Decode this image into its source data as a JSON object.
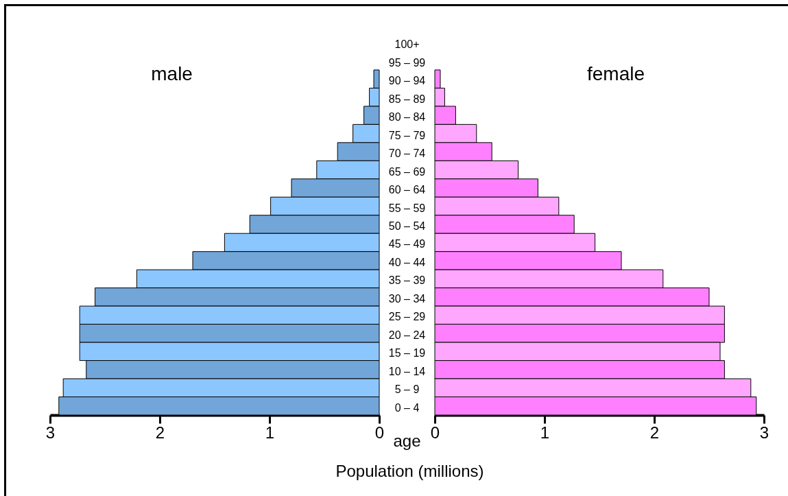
{
  "chart_data": [
    {
      "type": "bar",
      "orientation": "horizontal",
      "ylabel": "age",
      "categories": [
        "100+",
        "95 – 99",
        "90 – 94",
        "85 – 89",
        "80 – 84",
        "75 – 79",
        "70 – 74",
        "65 – 69",
        "60 – 64",
        "55 – 59",
        "50 – 54",
        "45 – 49",
        "40 – 44",
        "35 – 39",
        "30 – 34",
        "25 – 29",
        "20 – 24",
        "15 – 19",
        "10 – 14",
        "5 – 9",
        "0 – 4"
      ],
      "series": [
        {
          "name": "male",
          "colors": [
            "#72a6d9",
            "#8cc6ff",
            "#72a6d9",
            "#8cc6ff",
            "#72a6d9",
            "#8cc6ff",
            "#72a6d9",
            "#8cc6ff",
            "#72a6d9",
            "#8cc6ff",
            "#72a6d9",
            "#8cc6ff",
            "#72a6d9",
            "#8cc6ff",
            "#72a6d9",
            "#8cc6ff",
            "#72a6d9",
            "#8cc6ff",
            "#72a6d9",
            "#8cc6ff",
            "#72a6d9"
          ],
          "values": [
            null,
            null,
            0.05,
            0.09,
            0.14,
            0.24,
            0.38,
            0.57,
            0.8,
            0.99,
            1.18,
            1.41,
            1.7,
            2.21,
            2.59,
            2.73,
            2.73,
            2.73,
            2.67,
            2.88,
            2.92
          ]
        }
      ],
      "xlim": [
        3,
        0
      ],
      "xticks": [
        3,
        2,
        1,
        0
      ],
      "grid": false
    },
    {
      "type": "bar",
      "orientation": "horizontal",
      "xlabel": "Population (millions)",
      "categories": [
        null,
        null,
        null,
        null,
        null,
        null,
        null,
        null,
        null,
        null,
        null,
        null,
        null,
        null,
        null,
        null,
        null,
        null,
        null,
        null,
        null
      ],
      "series": [
        {
          "name": "female",
          "colors": [
            "#ff80ff",
            "#ffa6ff",
            "#ff80ff",
            "#ffa6ff",
            "#ff80ff",
            "#ffa6ff",
            "#ff80ff",
            "#ffa6ff",
            "#ff80ff",
            "#ffa6ff",
            "#ff80ff",
            "#ffa6ff",
            "#ff80ff",
            "#ffa6ff",
            "#ff80ff",
            "#ffa6ff",
            "#ff80ff",
            "#ffa6ff",
            "#ff80ff",
            "#ffa6ff",
            "#ff80ff"
          ],
          "values": [
            null,
            null,
            0.05,
            0.09,
            0.19,
            0.38,
            0.52,
            0.76,
            0.94,
            1.13,
            1.27,
            1.46,
            1.7,
            2.08,
            2.5,
            2.64,
            2.64,
            2.6,
            2.64,
            2.88,
            2.93
          ]
        }
      ],
      "xlim": [
        0,
        3
      ],
      "xticks": [
        0,
        1,
        2,
        3
      ],
      "grid": false
    }
  ]
}
